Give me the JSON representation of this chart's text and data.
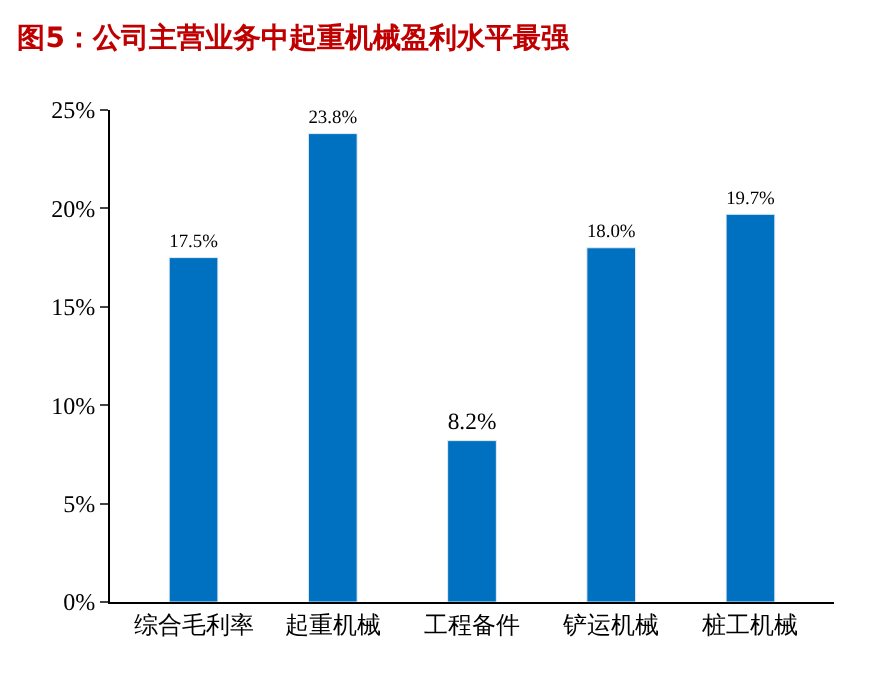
{
  "chart_data": {
    "type": "bar",
    "title": "图5：公司主营业务中起重机械盈利水平最强",
    "categories": [
      "综合毛利率",
      "起重机械",
      "工程备件",
      "铲运机械",
      "桩工机械"
    ],
    "values": [
      17.5,
      23.8,
      8.2,
      18.0,
      19.7
    ],
    "value_labels": [
      "17.5%",
      "23.8%",
      "8.2%",
      "18.0%",
      "19.7%"
    ],
    "color": "#0070c0",
    "ylim": [
      0,
      25
    ],
    "yticks": [
      {
        "value": 0,
        "label": "0%"
      },
      {
        "value": 5,
        "label": "5%"
      },
      {
        "value": 10,
        "label": "10%"
      },
      {
        "value": 15,
        "label": "15%"
      },
      {
        "value": 20,
        "label": "20%"
      },
      {
        "value": 25,
        "label": "25%"
      }
    ]
  }
}
